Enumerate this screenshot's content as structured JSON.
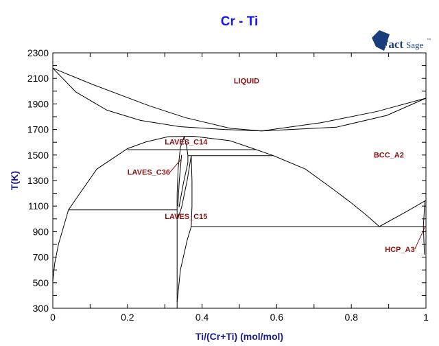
{
  "chart_data": {
    "type": "line",
    "title": "Cr - Ti",
    "xlabel": "Ti/(Cr+Ti) (mol/mol)",
    "ylabel": "T(K)",
    "xlim": [
      0,
      1
    ],
    "ylim": [
      300,
      2300
    ],
    "x_ticks": [
      "0",
      "0.2",
      "0.4",
      "0.6",
      "0.8",
      "1"
    ],
    "y_ticks": [
      "300",
      "500",
      "700",
      "900",
      "1100",
      "1300",
      "1500",
      "1700",
      "1900",
      "2100",
      "2300"
    ],
    "grid": false,
    "line_color": "#000000",
    "lines": [
      {
        "id": "liquidus",
        "points": [
          [
            0,
            2180
          ],
          [
            0.107,
            2052
          ],
          [
            0.257,
            1887
          ],
          [
            0.355,
            1793
          ],
          [
            0.475,
            1709
          ],
          [
            0.56,
            1688
          ],
          [
            0.72,
            1754
          ],
          [
            0.87,
            1842
          ],
          [
            1,
            1945
          ]
        ]
      },
      {
        "id": "solidus",
        "points": [
          [
            0,
            2180
          ],
          [
            0.062,
            1993
          ],
          [
            0.145,
            1851
          ],
          [
            0.235,
            1771
          ],
          [
            0.34,
            1722
          ],
          [
            0.46,
            1700
          ],
          [
            0.56,
            1688
          ],
          [
            0.76,
            1718
          ],
          [
            0.895,
            1810
          ],
          [
            1,
            1945
          ]
        ]
      },
      {
        "id": "miscibility-gap",
        "points": [
          [
            0,
            510
          ],
          [
            0.005,
            650
          ],
          [
            0.015,
            800
          ],
          [
            0.03,
            950
          ],
          [
            0.042,
            1070
          ],
          [
            0.07,
            1190
          ],
          [
            0.118,
            1390
          ],
          [
            0.2,
            1550
          ],
          [
            0.25,
            1603
          ],
          [
            0.31,
            1644
          ],
          [
            0.377,
            1647
          ],
          [
            0.475,
            1612
          ],
          [
            0.542,
            1545
          ],
          [
            0.59,
            1496
          ],
          [
            0.677,
            1390
          ],
          [
            0.75,
            1235
          ],
          [
            0.8,
            1125
          ],
          [
            0.84,
            1030
          ],
          [
            0.875,
            940
          ]
        ]
      },
      {
        "id": "bcc-hcp-boundary",
        "points": [
          [
            0.875,
            940
          ],
          [
            0.95,
            1060
          ],
          [
            1,
            1145
          ]
        ]
      },
      {
        "id": "tie-line-1542",
        "points": [
          [
            0.2,
            1542
          ],
          [
            0.542,
            1542
          ]
        ]
      },
      {
        "id": "tie-line-1495",
        "points": [
          [
            0.362,
            1495
          ],
          [
            0.59,
            1495
          ]
        ]
      },
      {
        "id": "tie-line-1070",
        "points": [
          [
            0.042,
            1070
          ],
          [
            0.333,
            1070
          ]
        ]
      },
      {
        "id": "tie-line-940",
        "points": [
          [
            0.37,
            940
          ],
          [
            1,
            940
          ]
        ]
      },
      {
        "id": "laves-left",
        "points": [
          [
            0.352,
            1645
          ],
          [
            0.342,
            1560
          ],
          [
            0.336,
            1400
          ],
          [
            0.333,
            1200
          ],
          [
            0.333,
            1070
          ],
          [
            0.333,
            300
          ]
        ]
      },
      {
        "id": "laves-c14-right",
        "points": [
          [
            0.352,
            1645
          ],
          [
            0.359,
            1560
          ],
          [
            0.362,
            1495
          ],
          [
            0.362,
            1440
          ]
        ]
      },
      {
        "id": "laves-c36-a",
        "points": [
          [
            0.345,
            1500
          ],
          [
            0.339,
            1300
          ],
          [
            0.335,
            1100
          ]
        ]
      },
      {
        "id": "laves-c36-b",
        "points": [
          [
            0.362,
            1440
          ],
          [
            0.35,
            1280
          ],
          [
            0.338,
            1090
          ]
        ]
      },
      {
        "id": "laves-c15-left",
        "points": [
          [
            0.371,
            1495
          ],
          [
            0.36,
            1300
          ],
          [
            0.345,
            1090
          ],
          [
            0.335,
            1000
          ]
        ]
      },
      {
        "id": "laves-c15-right",
        "points": [
          [
            0.371,
            1495
          ],
          [
            0.373,
            1300
          ],
          [
            0.373,
            1100
          ],
          [
            0.371,
            940
          ]
        ]
      },
      {
        "id": "laves-c15-lower",
        "points": [
          [
            0.371,
            940
          ],
          [
            0.36,
            832
          ],
          [
            0.342,
            600
          ],
          [
            0.333,
            347
          ]
        ]
      },
      {
        "id": "hcp-left",
        "points": [
          [
            0.997,
            1140
          ],
          [
            0.993,
            940
          ],
          [
            0.996,
            720
          ]
        ]
      }
    ],
    "region_labels": [
      {
        "text": "LIQUID",
        "x": 0.485,
        "T": 2060
      },
      {
        "text": "BCC_A2",
        "x": 0.86,
        "T": 1480
      },
      {
        "text": "LAVES_C14",
        "x": 0.3,
        "T": 1583
      },
      {
        "text": "LAVES_C36",
        "x": 0.2,
        "T": 1345,
        "leader_to": [
          0.345,
          1470
        ]
      },
      {
        "text": "LAVES_C15",
        "x": 0.3,
        "T": 1000
      },
      {
        "text": "HCP_A3",
        "x": 0.89,
        "T": 740,
        "leader_to": [
          0.998,
          940
        ]
      }
    ]
  },
  "logo": {
    "text_bold": "Fact",
    "text_light": "Sage",
    "mark": "™"
  }
}
